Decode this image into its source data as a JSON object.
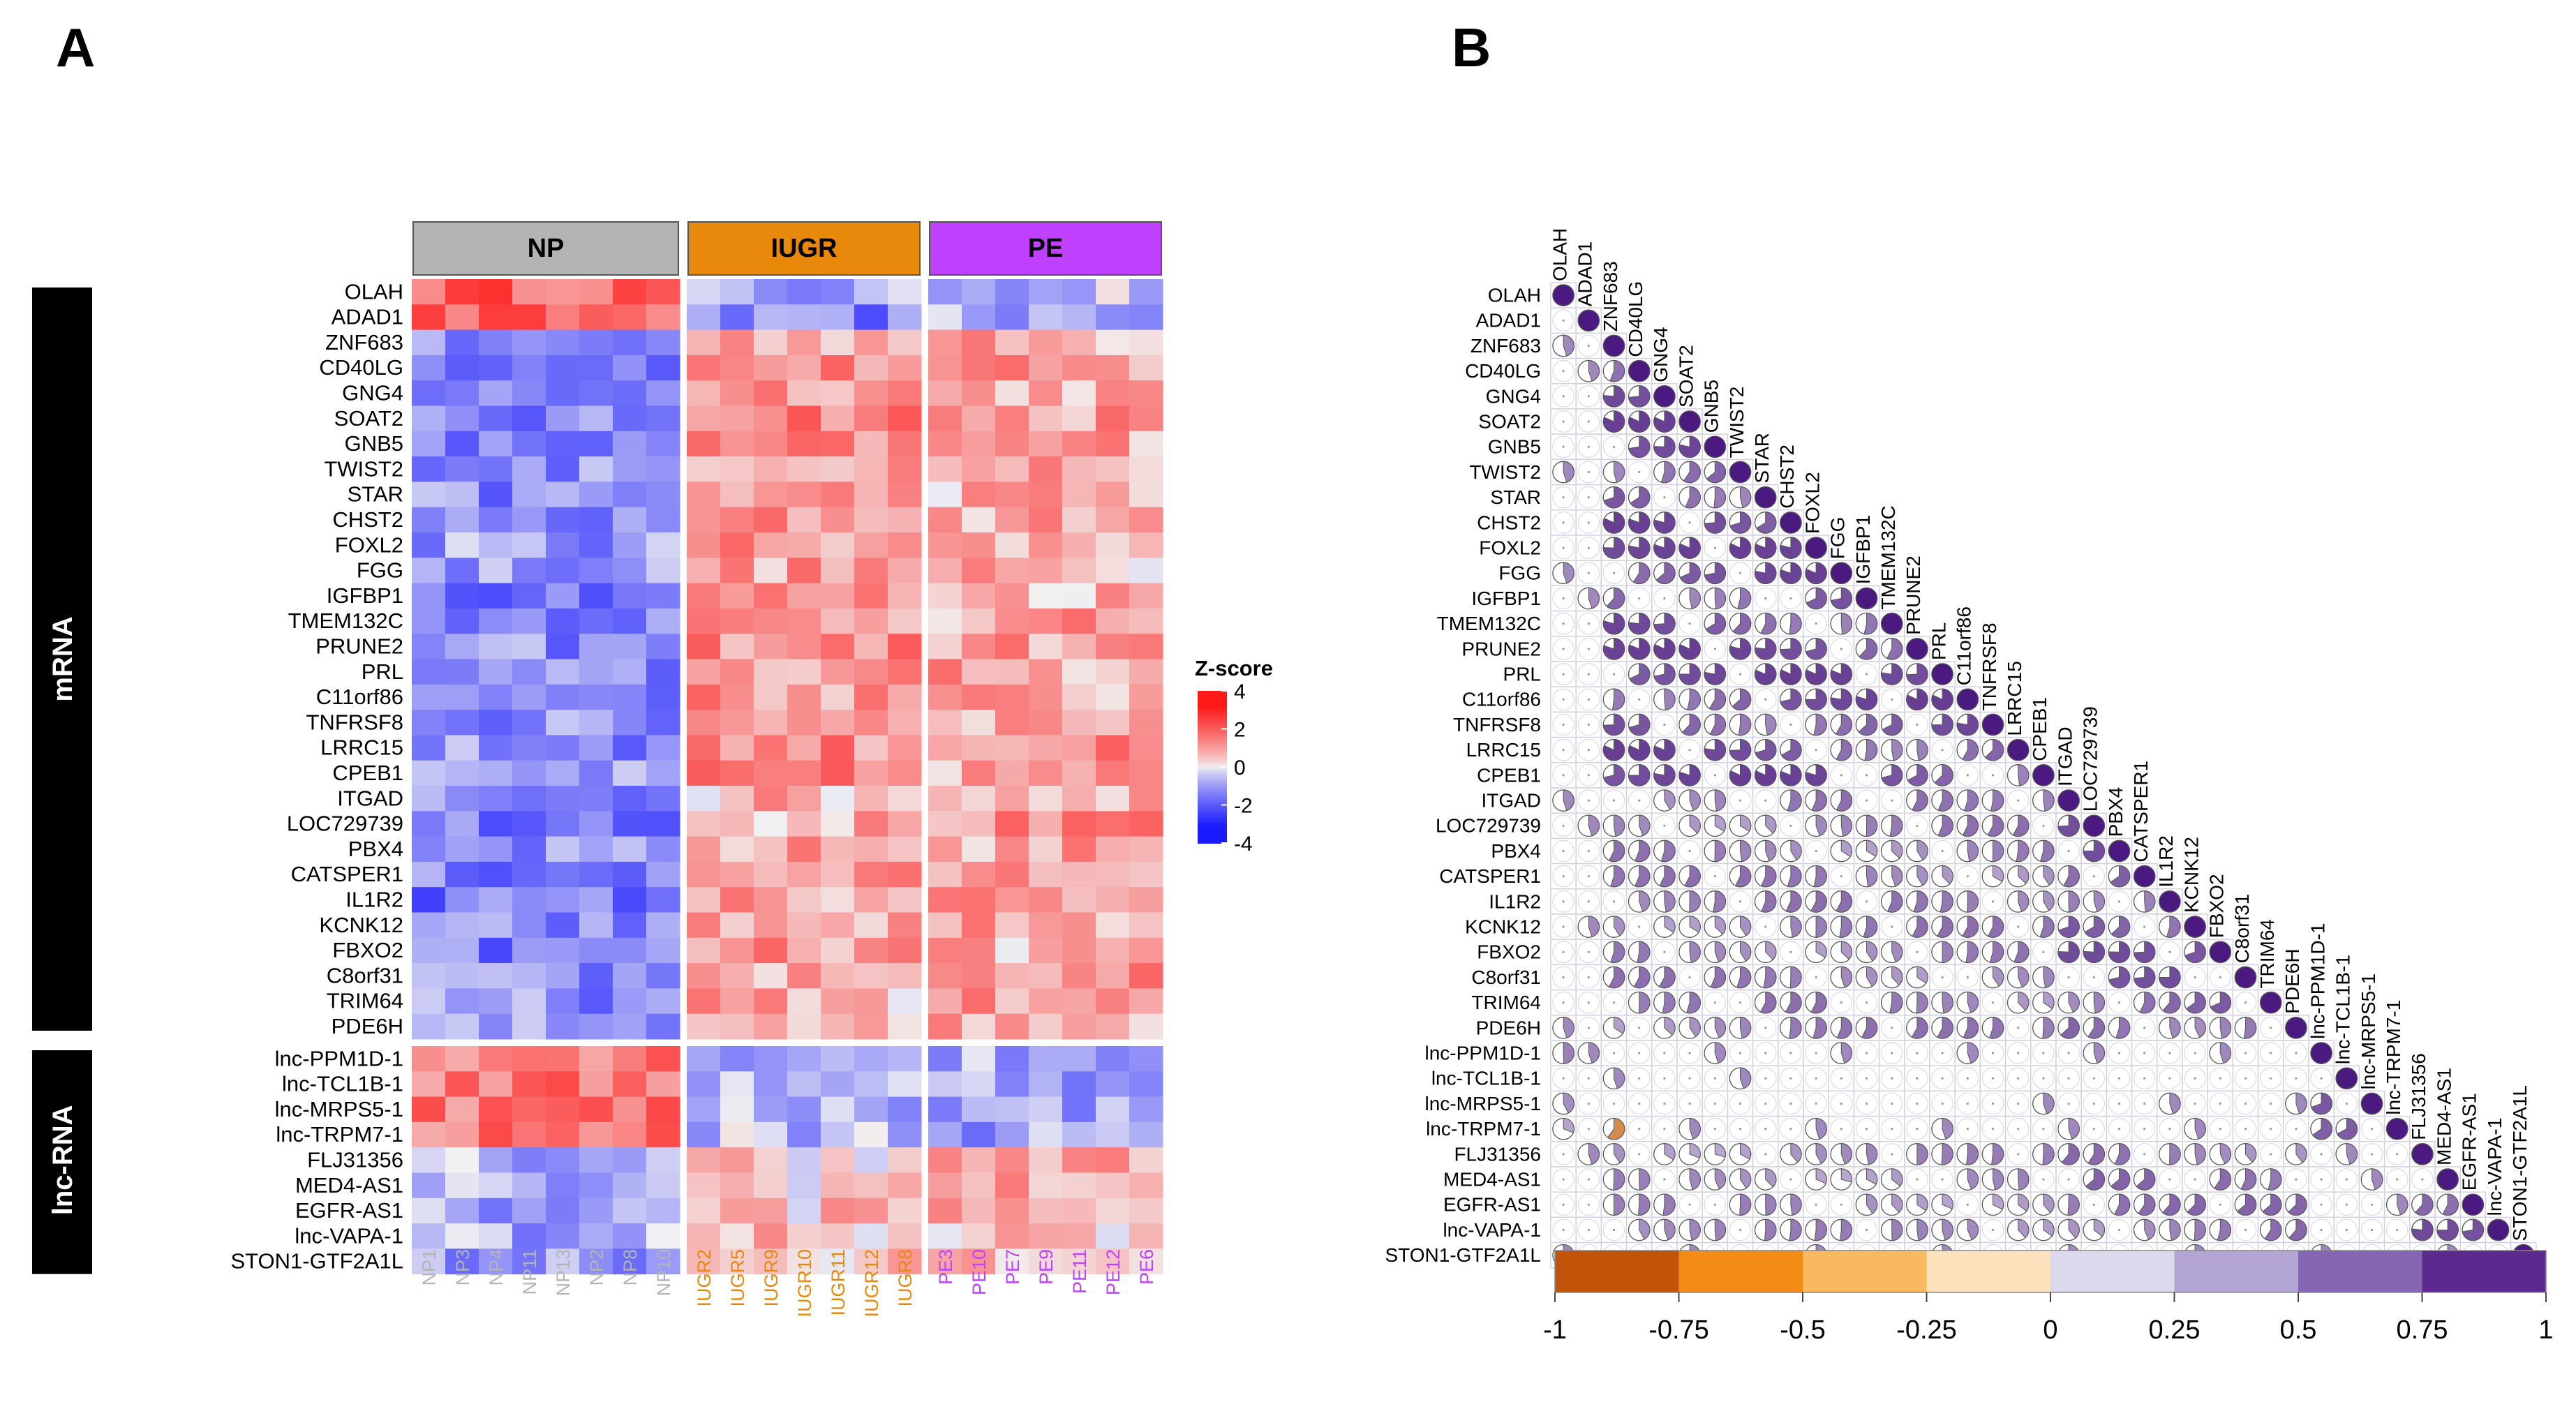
{
  "panel_a_label": "A",
  "panel_b_label": "B",
  "colors": {
    "heat_low": "#1a1aff",
    "heat_mid": "#f2f2f2",
    "heat_high": "#ff1a1a",
    "np": "#b4b4b4",
    "iugr": "#e8890c",
    "pe": "#bf40ff",
    "block_black": "#000000",
    "corr_orange": "#b85000",
    "corr_purple": "#4b1a80"
  },
  "chart_data": [
    {
      "type": "heatmap",
      "panel": "A",
      "groups": [
        {
          "name": "NP",
          "samples": [
            "NP1",
            "NP3",
            "NP4",
            "NP11",
            "NP13",
            "NP2",
            "NP8",
            "NP10"
          ]
        },
        {
          "name": "IUGR",
          "samples": [
            "IUGR2",
            "IUGR5",
            "IUGR9",
            "IUGR10",
            "IUGR11",
            "IUGR12",
            "IUGR8"
          ]
        },
        {
          "name": "PE",
          "samples": [
            "PE3",
            "PE10",
            "PE7",
            "PE9",
            "PE11",
            "PE12",
            "PE6"
          ]
        }
      ],
      "row_blocks": [
        {
          "name": "mRNA",
          "count": 30
        },
        {
          "name": "lnc-RNA",
          "count": 9
        }
      ],
      "genes": [
        "OLAH",
        "ADAD1",
        "ZNF683",
        "CD40LG",
        "GNG4",
        "SOAT2",
        "GNB5",
        "TWIST2",
        "STAR",
        "CHST2",
        "FOXL2",
        "FGG",
        "IGFBP1",
        "TMEM132C",
        "PRUNE2",
        "PRL",
        "C11orf86",
        "TNFRSF8",
        "LRRC15",
        "CPEB1",
        "ITGAD",
        "LOC729739",
        "PBX4",
        "CATSPER1",
        "IL1R2",
        "KCNK12",
        "FBXO2",
        "C8orf31",
        "TRIM64",
        "PDE6H",
        "lnc-PPM1D-1",
        "lnc-TCL1B-1",
        "lnc-MRPS5-1",
        "lnc-TRPM7-1",
        "FLJ31356",
        "MED4-AS1",
        "EGFR-AS1",
        "lnc-VAPA-1",
        "STON1-GTF2A1L"
      ],
      "row_profiles": [
        [
          2.0,
          -1.0,
          -0.5
        ],
        [
          1.8,
          -1.5,
          -0.8
        ],
        [
          -1.5,
          1.0,
          0.8
        ],
        [
          -1.3,
          1.2,
          0.9
        ],
        [
          -1.4,
          1.3,
          0.9
        ],
        [
          -1.5,
          1.6,
          1.1
        ],
        [
          -1.6,
          1.1,
          1.0
        ],
        [
          -1.2,
          1.1,
          0.9
        ],
        [
          -1.3,
          1.0,
          0.8
        ],
        [
          -1.5,
          1.1,
          0.9
        ],
        [
          -1.0,
          1.2,
          0.8
        ],
        [
          -1.0,
          1.0,
          0.7
        ],
        [
          -1.4,
          1.1,
          0.8
        ],
        [
          -1.2,
          1.1,
          0.9
        ],
        [
          -1.3,
          1.3,
          1.0
        ],
        [
          -1.4,
          1.0,
          0.9
        ],
        [
          -1.2,
          1.1,
          0.8
        ],
        [
          -1.3,
          1.2,
          1.0
        ],
        [
          -1.2,
          1.3,
          1.1
        ],
        [
          -1.1,
          1.2,
          0.9
        ],
        [
          -1.2,
          0.7,
          0.9
        ],
        [
          -1.4,
          0.8,
          1.1
        ],
        [
          -1.3,
          0.8,
          0.9
        ],
        [
          -1.5,
          0.9,
          1.0
        ],
        [
          -1.6,
          0.9,
          0.9
        ],
        [
          -1.4,
          0.8,
          0.9
        ],
        [
          -1.5,
          1.0,
          0.7
        ],
        [
          -1.3,
          0.9,
          1.1
        ],
        [
          -1.2,
          0.8,
          0.9
        ],
        [
          -1.1,
          0.9,
          0.8
        ],
        [
          1.7,
          -0.6,
          -0.9
        ],
        [
          1.5,
          -0.5,
          -0.8
        ],
        [
          1.7,
          -0.6,
          -0.9
        ],
        [
          1.6,
          -0.6,
          -0.9
        ],
        [
          -0.8,
          0.5,
          0.8
        ],
        [
          -0.9,
          0.5,
          0.8
        ],
        [
          -1.0,
          0.6,
          0.8
        ],
        [
          -0.9,
          0.6,
          0.7
        ],
        [
          -1.0,
          0.6,
          0.3
        ]
      ],
      "legend_title": "Z-score",
      "legend_ticks": [
        "4",
        "2",
        "0",
        "-2",
        "-4"
      ],
      "legend_values": [
        4,
        2,
        0,
        -2,
        -4
      ],
      "value_range": [
        -4,
        4
      ]
    },
    {
      "type": "correlation_matrix",
      "panel": "B",
      "labels": [
        "OLAH",
        "ADAD1",
        "ZNF683",
        "CD40LG",
        "GNG4",
        "SOAT2",
        "GNB5",
        "TWIST2",
        "STAR",
        "CHST2",
        "FOXL2",
        "FGG",
        "IGFBP1",
        "TMEM132C",
        "PRUNE2",
        "PRL",
        "C11orf86",
        "TNFRSF8",
        "LRRC15",
        "CPEB1",
        "ITGAD",
        "LOC729739",
        "PBX4",
        "CATSPER1",
        "IL1R2",
        "KCNK12",
        "FBXO2",
        "C8orf31",
        "TRIM64",
        "PDE6H",
        "lnc-PPM1D-1",
        "lnc-TCL1B-1",
        "lnc-MRPS5-1",
        "lnc-TRPM7-1",
        "FLJ31356",
        "MED4-AS1",
        "EGFR-AS1",
        "lnc-VAPA-1",
        "STON1-GTF2A1L"
      ],
      "groups": [
        "a",
        "b",
        "c",
        "c",
        "c",
        "c",
        "c",
        "c",
        "c",
        "c",
        "c",
        "c",
        "c",
        "c",
        "c",
        "c",
        "c",
        "c",
        "c",
        "c",
        "d",
        "d",
        "d",
        "d",
        "d",
        "d",
        "d",
        "d",
        "d",
        "d",
        "e",
        "e",
        "e",
        "e",
        "f",
        "f",
        "f",
        "f",
        "g"
      ],
      "group_corr": {
        "same": {
          "a": 0,
          "b": 0,
          "c": 0.82,
          "d": 0.76,
          "e": 0.7,
          "f": 0.78,
          "g": 0
        },
        "cross": {
          "c|d": 0.58,
          "d|f": 0.64,
          "c|f": 0.52,
          "a|e": 0.52
        }
      },
      "colorbar_ticks": [
        "-1",
        "-0.75",
        "-0.5",
        "-0.25",
        "0",
        "0.25",
        "0.5",
        "0.75",
        "1"
      ],
      "colorbar_values": [
        -1,
        -0.75,
        -0.5,
        -0.25,
        0,
        0.25,
        0.5,
        0.75,
        1
      ],
      "range": [
        -1,
        1
      ]
    }
  ]
}
